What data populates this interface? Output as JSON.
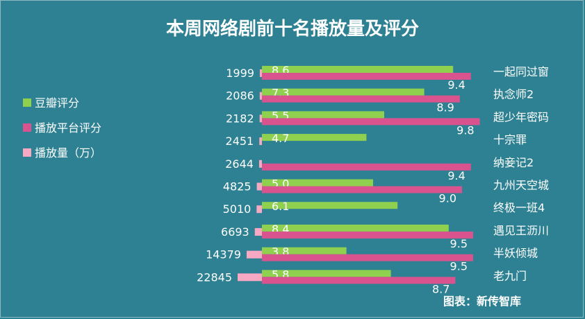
{
  "chart_data": {
    "type": "bar",
    "title": "本周网络剧前十名播放量及评分",
    "categories": [
      "一起同过窗",
      "执念师2",
      "超少年密码",
      "十宗罪",
      "纳妾记2",
      "九州天空城",
      "终极一班4",
      "遇见王沥川",
      "半妖倾城",
      "老九门"
    ],
    "series": [
      {
        "name": "豆瓣评分",
        "values": [
          8.6,
          7.3,
          5.5,
          4.7,
          null,
          5.0,
          6.1,
          8.4,
          3.8,
          5.8
        ],
        "labels": [
          "8.6",
          "7.3",
          "5.5",
          "4.7",
          "",
          "5.0",
          "6.1",
          "8.4",
          "3.8",
          "5.8"
        ]
      },
      {
        "name": "播放平台评分",
        "values": [
          9.4,
          8.9,
          9.8,
          null,
          9.4,
          9.0,
          null,
          9.5,
          9.5,
          8.7
        ],
        "labels": [
          "9.4",
          "8.9",
          "9.8",
          "",
          "9.4",
          "9.0",
          "",
          "9.5",
          "9.5",
          "8.7"
        ]
      },
      {
        "name": "播放量（万）",
        "values": [
          1999,
          2086,
          2182,
          2451,
          2644,
          4825,
          5010,
          6693,
          14379,
          22845
        ]
      }
    ],
    "colors": {
      "douban": "#8fd14f",
      "platform": "#d9548f",
      "views": "#f7a9c4",
      "background": "#2d8192"
    },
    "score_max": 10,
    "views_max": 22845,
    "legend_position": "left"
  },
  "source": "图表：新传智库"
}
